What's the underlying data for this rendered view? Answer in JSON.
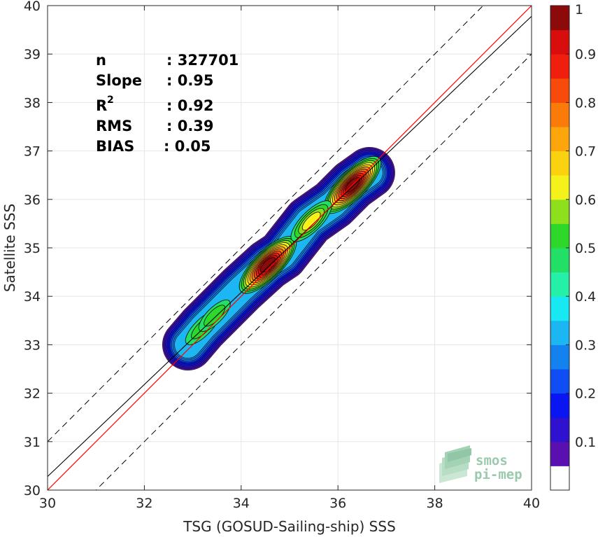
{
  "chart_data": {
    "type": "heatmap",
    "subtype": "density-contour-scatter",
    "xlabel": "TSG (GOSUD-Sailing-ship) SSS",
    "ylabel": "Satellite SSS",
    "xlim": [
      30,
      40
    ],
    "ylim": [
      30,
      40
    ],
    "xticks": [
      "30",
      "32",
      "34",
      "36",
      "38",
      "40"
    ],
    "yticks": [
      "30",
      "31",
      "32",
      "33",
      "34",
      "35",
      "36",
      "37",
      "38",
      "39",
      "40"
    ],
    "grid": true,
    "stats": [
      {
        "label": "n",
        "value": ": 327701"
      },
      {
        "label": "Slope",
        "value": ": 0.95"
      },
      {
        "label": "R",
        "sup": "2",
        "value": ": 0.92"
      },
      {
        "label": "RMS",
        "value": ": 0.39"
      },
      {
        "label": "BIAS",
        "value": ": 0.05"
      }
    ],
    "lines": {
      "identity": {
        "slope": 1.0,
        "intercept": 0.0,
        "color": "#ff0000"
      },
      "regression": {
        "slope": 0.95,
        "intercept": 1.78,
        "color": "#000000"
      },
      "bounds_dashed": [
        {
          "slope": 1.0,
          "intercept": 1.0
        },
        {
          "slope": 1.0,
          "intercept": -1.0
        }
      ]
    },
    "density_ridge": [
      [
        32.9,
        33.0
      ],
      [
        33.2,
        33.35
      ],
      [
        33.5,
        33.65
      ],
      [
        34.0,
        34.15
      ],
      [
        34.55,
        34.65
      ],
      [
        34.85,
        34.85
      ],
      [
        35.4,
        35.55
      ],
      [
        35.9,
        35.9
      ],
      [
        36.3,
        36.3
      ],
      [
        36.65,
        36.55
      ]
    ],
    "density_peaks": [
      {
        "x": 34.55,
        "y": 34.65,
        "level": 1.0
      },
      {
        "x": 36.3,
        "y": 36.3,
        "level": 1.0
      },
      {
        "x": 35.45,
        "y": 35.55,
        "level": 0.65
      },
      {
        "x": 33.2,
        "y": 33.35,
        "level": 0.5
      },
      {
        "x": 33.45,
        "y": 33.6,
        "level": 0.45
      }
    ],
    "colorbar": {
      "min": 0,
      "max": 1,
      "ticks": [
        "0.1",
        "0.2",
        "0.3",
        "0.4",
        "0.5",
        "0.6",
        "0.7",
        "0.8",
        "0.9",
        "1"
      ],
      "colors": [
        "#ffffff",
        "#5a0fb0",
        "#2f12d0",
        "#0a16f2",
        "#0f4ef5",
        "#1482ee",
        "#1cb6f2",
        "#18e8f2",
        "#24f0a8",
        "#22e066",
        "#2ed82a",
        "#8ee01c",
        "#f4f21a",
        "#fbd210",
        "#fca60c",
        "#fa7a0a",
        "#f84a0a",
        "#f01e0c",
        "#d80e0e",
        "#8c0a0a"
      ]
    },
    "colors": {
      "axis": "#262626",
      "grid": "#e6e6e6"
    }
  },
  "watermark": {
    "line1": "smos",
    "line2": "pi-mep"
  }
}
